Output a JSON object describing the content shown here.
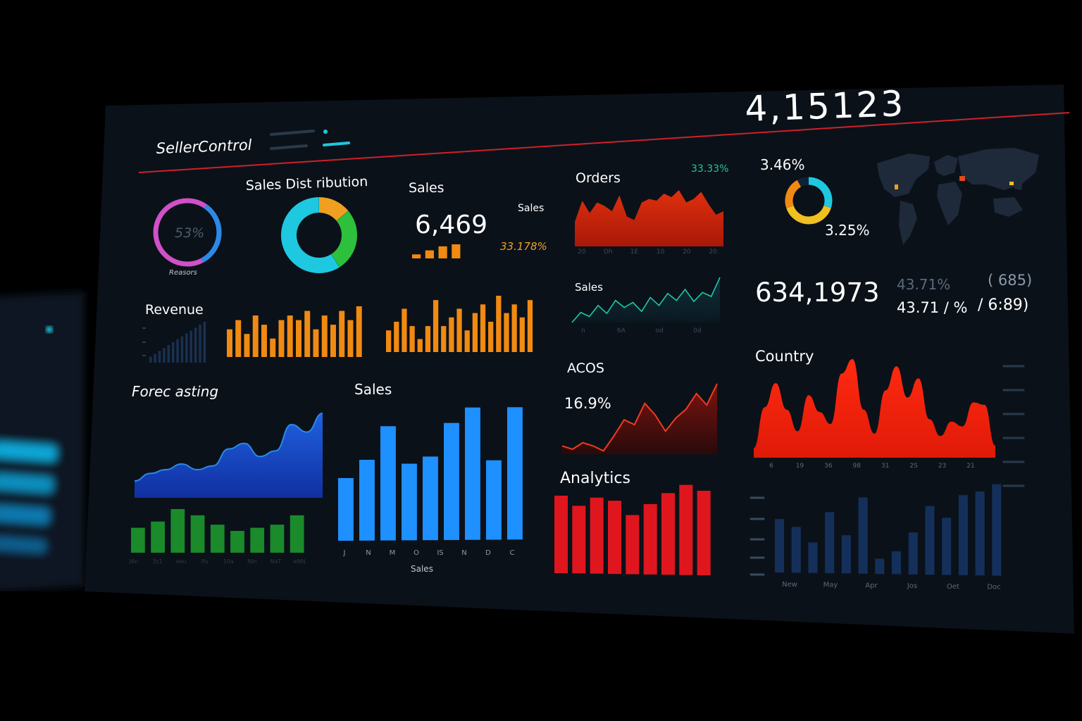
{
  "app": {
    "title": "SellerControl",
    "top_total": "4,15123"
  },
  "colors": {
    "background": "#000000",
    "panel": "#0b1119",
    "divider": "#d0202a",
    "orange": "#f08a12",
    "teal": "#1ec8e0",
    "blue": "#1e90ff",
    "green": "#1a8a2a",
    "red": "#e0161e",
    "muted": "#5a6a7a"
  },
  "reasons": {
    "value_label": "53%",
    "caption": "Reasors",
    "percent": 53
  },
  "sales_distribution": {
    "title": "Sales Dist ribution",
    "segments": [
      {
        "color": "#f0a020",
        "value": 14
      },
      {
        "color": "#2cc03c",
        "value": 27
      },
      {
        "color": "#1ec8e0",
        "value": 59
      }
    ]
  },
  "sales_kpi": {
    "title": "Sales",
    "value": "6,469",
    "side_label": "Sales",
    "percent": "33.178%",
    "bars": [
      1,
      2,
      3,
      3.5
    ]
  },
  "orders": {
    "title": "Orders",
    "percent": "33.33%",
    "x_ticks": [
      "20",
      "Oh",
      "1E",
      "10",
      "20",
      "20"
    ],
    "values": [
      28,
      52,
      38,
      50,
      46,
      40,
      58,
      34,
      30,
      50,
      54,
      52,
      60,
      56,
      64,
      50,
      54,
      62,
      48,
      36,
      40
    ]
  },
  "sales_line": {
    "title": "Sales",
    "x_ticks": [
      "n",
      "6A",
      "od",
      "0d"
    ],
    "values": [
      0,
      20,
      12,
      34,
      18,
      44,
      30,
      40,
      22,
      50,
      34,
      58,
      44,
      66,
      42,
      60,
      52,
      90
    ]
  },
  "country_mini": {
    "percent_top": "3.46%",
    "percent_bottom": "3.25%",
    "segments": [
      {
        "color": "#1ec8e0",
        "value": 30
      },
      {
        "color": "#f0c020",
        "value": 40
      },
      {
        "color": "#f08a12",
        "value": 22
      },
      {
        "color": "#0e2436",
        "value": 8
      }
    ]
  },
  "world_markers": [
    {
      "color": "#f0a020"
    },
    {
      "color": "#e04a20"
    },
    {
      "color": "#f0c020"
    }
  ],
  "stats": {
    "big_number": "634,1973",
    "percent_muted": "43.71%",
    "percent_main": "43.71 / %",
    "paren_value": "( 685)",
    "ratio": "/ 6:89)"
  },
  "revenue": {
    "title": "Revenue",
    "mini_bars": [
      2,
      3,
      4,
      5,
      6,
      7,
      8,
      9,
      10,
      11,
      12,
      13,
      14
    ],
    "orange_a": [
      6,
      8,
      5,
      9,
      7,
      4,
      8,
      9,
      8,
      10,
      6,
      9,
      7,
      10,
      8,
      11
    ],
    "orange_b": [
      5,
      7,
      10,
      6,
      3,
      6,
      12,
      6,
      8,
      10,
      5,
      9,
      11,
      7,
      13,
      9,
      11,
      8,
      12
    ]
  },
  "forecasting": {
    "title": "Forec asting",
    "area_values": [
      18,
      26,
      30,
      36,
      30,
      34,
      52,
      58,
      44,
      50,
      78,
      70,
      90
    ],
    "green_bars": [
      4,
      5,
      7,
      6,
      4.5,
      3.5,
      4,
      4.5,
      6
    ],
    "x_ticks": [
      "JAn",
      "3c1",
      "eeu",
      "Ifu",
      "10a",
      "NIn",
      "NaT",
      "eNN"
    ]
  },
  "sales_bars": {
    "title": "Sales",
    "x_ticks": [
      "J",
      "N",
      "M",
      "O",
      "IS",
      "N",
      "D",
      "C"
    ],
    "xlabel": "Sales",
    "values": [
      45,
      58,
      82,
      55,
      60,
      84,
      95,
      57,
      95
    ]
  },
  "acos": {
    "title": "ACOS",
    "value": "16.9%",
    "values": [
      10,
      6,
      14,
      10,
      4,
      22,
      42,
      36,
      62,
      48,
      28,
      44,
      55,
      74,
      60,
      86
    ]
  },
  "analytics": {
    "title": "Analytics",
    "values": [
      55,
      48,
      54,
      52,
      42,
      50,
      58,
      64,
      60
    ]
  },
  "country": {
    "title": "Country",
    "x_ticks": [
      "6",
      "19",
      "36",
      "98",
      "31",
      "2S",
      "23",
      "21"
    ],
    "values": [
      8,
      42,
      62,
      40,
      22,
      52,
      38,
      28,
      70,
      82,
      40,
      20,
      56,
      76,
      50,
      66,
      32,
      18,
      30,
      26,
      46,
      44,
      10
    ],
    "legend_dashes": 6
  },
  "bottom_bars": {
    "x_ticks": [
      "New",
      "May",
      "Apr",
      "Jos",
      "Oet",
      "Doc"
    ],
    "values": [
      28,
      24,
      16,
      32,
      20,
      40,
      8,
      12,
      22,
      36,
      30,
      42,
      44,
      48
    ]
  }
}
